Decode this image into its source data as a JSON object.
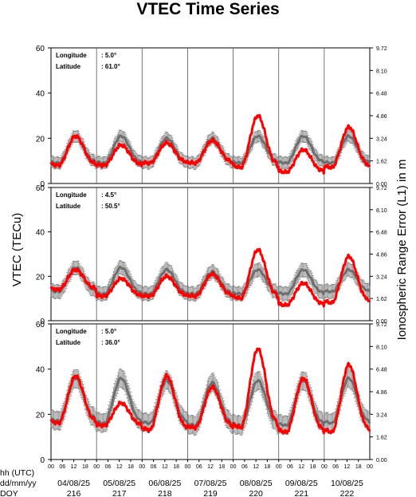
{
  "title": "VTEC Time Series",
  "ylabel_left": "VTEC (TECu)",
  "ylabel_right": "Ionospheric Range Error (L1) in m",
  "row_labels": [
    "hh (UTC)",
    "dd/mm/yy",
    "DOY"
  ],
  "info_labels": {
    "longitude": "Longitude",
    "latitude": "Latitude"
  },
  "colors": {
    "measured": "#ff0000",
    "reference": "#6e6e6e",
    "frame": "#000000"
  },
  "chart_data": {
    "type": "line",
    "title": "VTEC Time Series",
    "xlabel": "",
    "hour_ticks": [
      "00",
      "06",
      "12",
      "18"
    ],
    "dates": [
      "04/08/25",
      "05/08/25",
      "06/08/25",
      "07/08/25",
      "08/08/25",
      "09/08/25",
      "10/08/25"
    ],
    "doy": [
      "216",
      "217",
      "218",
      "219",
      "220",
      "221",
      "222"
    ],
    "grid": "vertical lines at day boundaries",
    "panels": [
      {
        "longitude": ":    5.0°",
        "latitude": ": 61.0°",
        "ylabel": "VTEC (TECu)",
        "ylim": [
          0,
          60
        ],
        "yticks": [
          "0",
          "20",
          "40",
          "60"
        ],
        "right_ylabel": "Ionospheric Range Error (L1) in m",
        "right_ylim": [
          0,
          9.72
        ],
        "right_yticks": [
          "0.00",
          "1.62",
          "3.24",
          "4.86",
          "6.48",
          "8.10",
          "9.72"
        ],
        "series": [
          {
            "name": "",
            "color": "#6e6e6e",
            "errorbar": 2.5,
            "day_peaks": [
              21,
              21,
              20,
              20,
              21,
              21,
              21
            ],
            "night_levels": [
              9,
              9,
              9,
              9,
              9,
              9,
              9
            ]
          },
          {
            "name": "",
            "color": "#ff0000",
            "day_peaks": [
              21,
              17,
              18,
              19,
              30,
              15,
              25
            ],
            "night_levels": [
              8,
              8,
              9,
              9,
              7,
              5,
              7
            ]
          }
        ]
      },
      {
        "longitude": ":    4.5°",
        "latitude": ": 50.5°",
        "ylabel": "VTEC (TECu)",
        "ylim": [
          0,
          60
        ],
        "yticks": [
          "0",
          "20",
          "40",
          "60"
        ],
        "right_ylabel": "Ionospheric Range Error (L1) in m",
        "right_ylim": [
          0,
          9.72
        ],
        "right_yticks": [
          "0.00",
          "1.62",
          "3.24",
          "4.86",
          "6.48",
          "8.10",
          "9.72"
        ],
        "series": [
          {
            "name": "",
            "color": "#6e6e6e",
            "errorbar": 3,
            "day_peaks": [
              24,
              24,
              23,
              22,
              23,
              23,
              23
            ],
            "night_levels": [
              13,
              12,
              12,
              12,
              12,
              12,
              13
            ]
          },
          {
            "name": "",
            "color": "#ff0000",
            "day_peaks": [
              23,
              19,
              20,
              21,
              32,
              17,
              29
            ],
            "night_levels": [
              14,
              11,
              11,
              11,
              10,
              7,
              8
            ]
          }
        ]
      },
      {
        "longitude": ":    5.0°",
        "latitude": ": 36.0°",
        "ylabel": "VTEC (TECu)",
        "ylim": [
          0,
          60
        ],
        "yticks": [
          "0",
          "20",
          "40",
          "60"
        ],
        "right_ylabel": "Ionospheric Range Error (L1) in m",
        "right_ylim": [
          0,
          9.72
        ],
        "right_yticks": [
          "0.00",
          "1.62",
          "3.24",
          "4.86",
          "6.48",
          "8.10",
          "9.72"
        ],
        "series": [
          {
            "name": "",
            "color": "#6e6e6e",
            "errorbar": 4,
            "day_peaks": [
              36,
              36,
              35,
              34,
              35,
              35,
              36
            ],
            "night_levels": [
              17,
              16,
              16,
              15,
              15,
              15,
              16
            ]
          },
          {
            "name": "",
            "color": "#ff0000",
            "day_peaks": [
              37,
              25,
              37,
              32,
              49,
              36,
              42
            ],
            "night_levels": [
              16,
              15,
              13,
              14,
              14,
              12,
              12
            ]
          }
        ]
      }
    ]
  }
}
